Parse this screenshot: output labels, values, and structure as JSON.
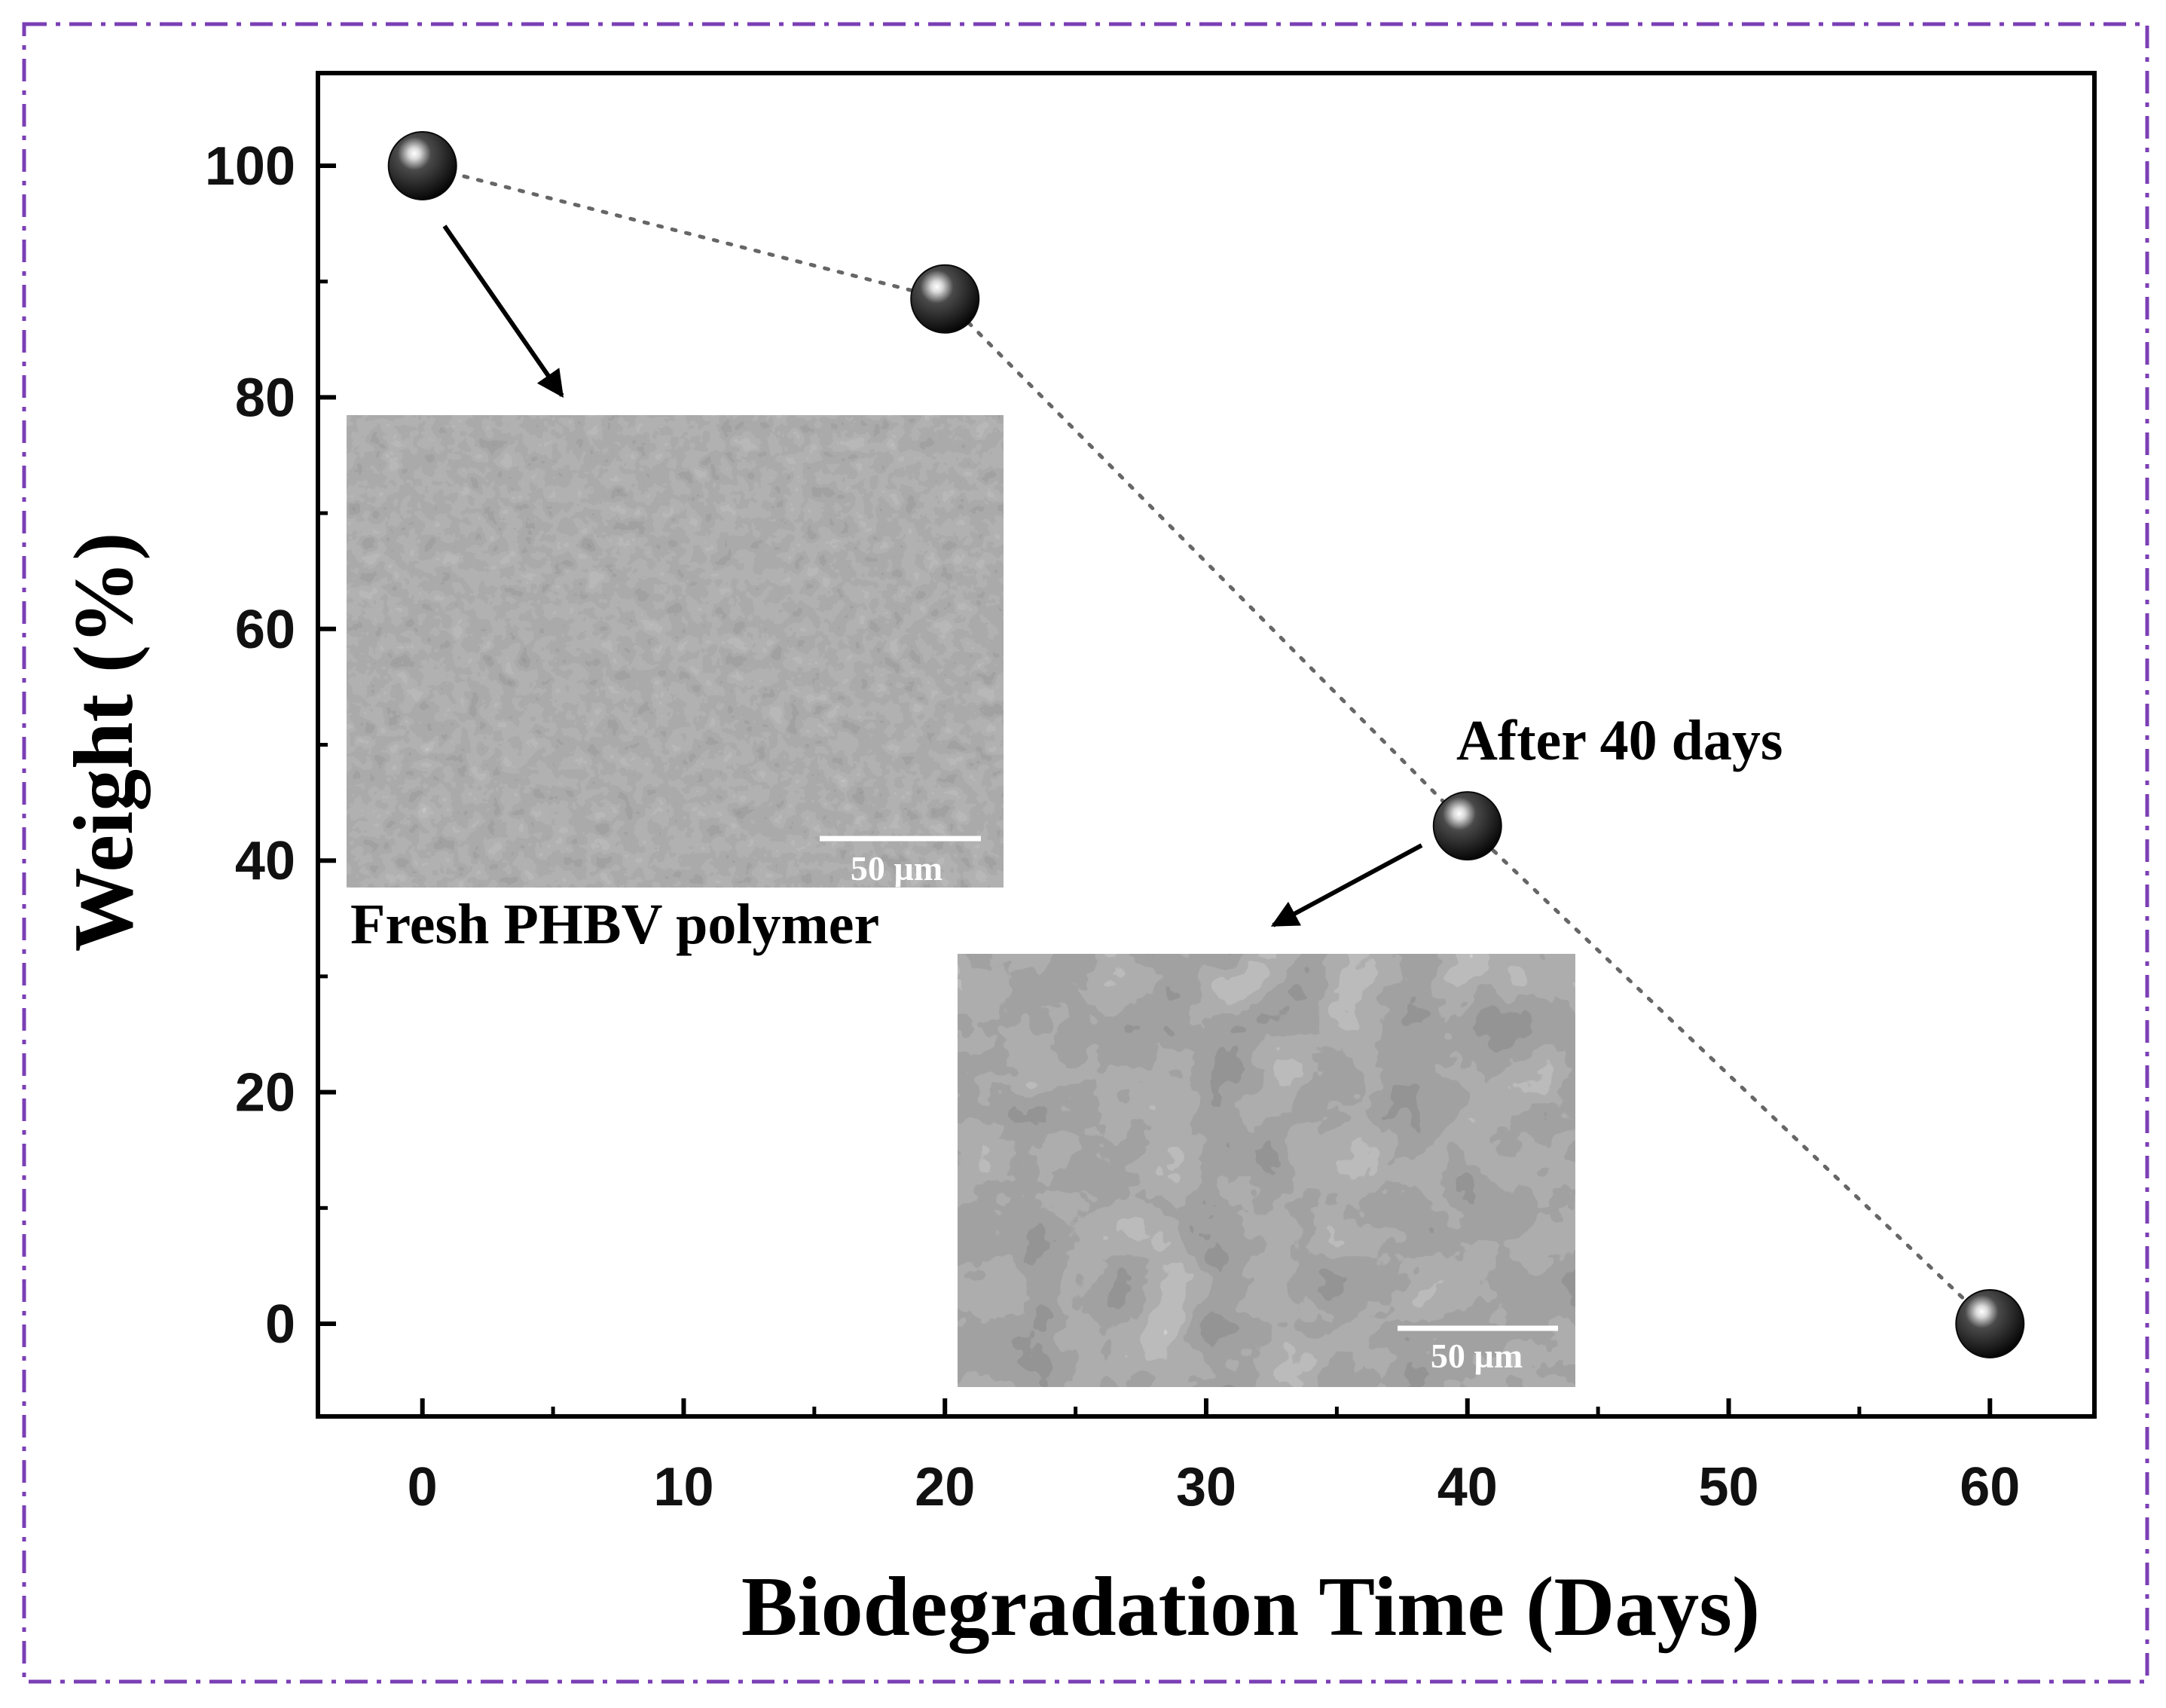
{
  "colors": {
    "frame": "#7b3fb5",
    "marker": "#0a0a0a",
    "connector": "#666666",
    "sem_light": "#8a8a8a",
    "sem_dark": "#3a3a3a"
  },
  "chart_data": {
    "type": "scatter",
    "title": "",
    "xlabel": "Biodegradation Time (Days)",
    "ylabel": "Weight (%)",
    "xlim": [
      -4,
      64
    ],
    "ylim": [
      -8,
      108
    ],
    "xticks": [
      0,
      10,
      20,
      30,
      40,
      50,
      60
    ],
    "yticks": [
      0,
      20,
      40,
      60,
      80,
      100
    ],
    "grid": false,
    "legend": "none",
    "connector": "dotted",
    "marker": "shaded-sphere",
    "series": [
      {
        "x": [
          0,
          20,
          40,
          60
        ],
        "y": [
          100,
          88.5,
          43,
          0
        ]
      }
    ],
    "annotations": {
      "fresh_caption": "Fresh PHBV polymer",
      "after_caption": "After 40 days",
      "scale_bar_fresh": "50 µm",
      "scale_bar_after": "50 µm"
    },
    "insets": [
      {
        "name": "fresh",
        "description_key": "fresh_caption",
        "points_to_x": 0
      },
      {
        "name": "after",
        "description_key": "after_caption",
        "points_to_x": 40
      }
    ]
  }
}
